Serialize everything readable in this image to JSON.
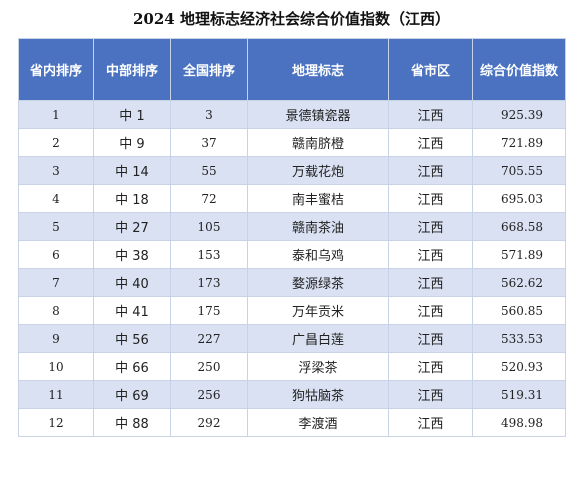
{
  "title": "2024 地理标志经济社会综合价值指数（江西）",
  "table": {
    "header": [
      "省内排序",
      "中部排序",
      "全国排序",
      "地理标志",
      "省市区",
      "综合价值指数"
    ],
    "rows": [
      [
        1,
        "中 1",
        3,
        "景德镇瓷器",
        "江西",
        925.39
      ],
      [
        2,
        "中 9",
        37,
        "赣南脐橙",
        "江西",
        721.89
      ],
      [
        3,
        "中 14",
        55,
        "万载花炮",
        "江西",
        705.55
      ],
      [
        4,
        "中 18",
        72,
        "南丰蜜桔",
        "江西",
        695.03
      ],
      [
        5,
        "中 27",
        105,
        "赣南茶油",
        "江西",
        668.58
      ],
      [
        6,
        "中 38",
        153,
        "泰和乌鸡",
        "江西",
        571.89
      ],
      [
        7,
        "中 40",
        173,
        "婺源绿茶",
        "江西",
        562.62
      ],
      [
        8,
        "中 41",
        175,
        "万年贡米",
        "江西",
        560.85
      ],
      [
        9,
        "中 56",
        227,
        "广昌白莲",
        "江西",
        533.53
      ],
      [
        10,
        "中 66",
        250,
        "浮梁茶",
        "江西",
        520.93
      ],
      [
        11,
        "中 69",
        256,
        "狗牯脑茶",
        "江西",
        519.31
      ],
      [
        12,
        "中 88",
        292,
        "李渡酒",
        "江西",
        498.98
      ]
    ]
  }
}
